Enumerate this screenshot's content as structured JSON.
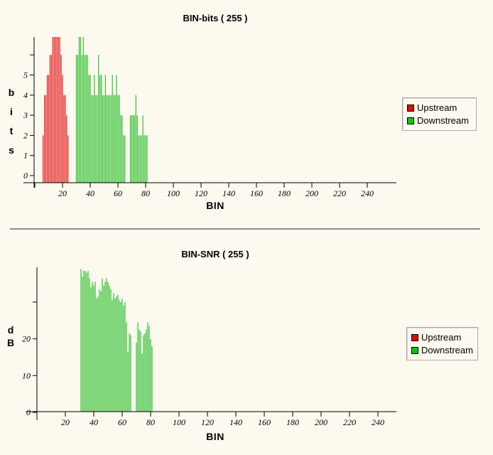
{
  "background_color": "#fdf9ef",
  "chart_data": [
    {
      "type": "bar",
      "name": "bits",
      "title": "BIN-bits ( 255 )",
      "xlabel": "BIN",
      "ylabel": "bits",
      "ylabel_chars": [
        "b",
        "i",
        "t",
        "s"
      ],
      "total_bins": 255,
      "xlim": [
        0,
        255
      ],
      "ylim": [
        0,
        6.6
      ],
      "grid": false,
      "x_ticks": [
        20,
        40,
        60,
        80,
        100,
        120,
        140,
        160,
        180,
        200,
        220,
        240
      ],
      "y_ticks": [
        {
          "value": 0,
          "label": "0"
        },
        {
          "value": 1,
          "label": "1"
        },
        {
          "value": 2,
          "label": "2"
        },
        {
          "value": 3,
          "label": "3"
        },
        {
          "value": 4,
          "label": "4"
        },
        {
          "value": 5,
          "label": "5"
        },
        {
          "value": 6,
          "label": ""
        }
      ],
      "series": [
        {
          "name": "Upstream",
          "color": "#e11b1b",
          "segments": [
            {
              "start_bin": 6,
              "values": [
                2,
                4,
                4,
                5,
                5,
                6,
                6,
                7,
                7,
                7,
                7,
                7,
                7,
                6,
                5,
                4,
                4,
                3,
                2
              ]
            }
          ]
        },
        {
          "name": "Downstream",
          "color": "#2fbf2f",
          "segments": [
            {
              "start_bin": 30,
              "values": [
                6,
                6,
                7,
                7,
                6,
                7,
                6,
                6,
                6,
                5,
                5,
                4,
                4,
                5,
                4,
                4,
                6,
                5,
                5,
                4,
                4,
                5,
                4,
                4,
                4,
                4,
                5,
                4,
                4,
                5,
                4,
                4,
                3,
                3,
                2,
                2
              ]
            },
            {
              "start_bin": 69,
              "values": [
                3,
                3,
                3,
                3,
                4,
                3,
                2,
                2,
                2,
                3,
                2,
                2,
                2
              ]
            }
          ]
        }
      ],
      "legend": {
        "position": "right",
        "items": [
          {
            "label": "Upstream",
            "color": "#ee0000"
          },
          {
            "label": "Downstream",
            "color": "#00cc00"
          }
        ]
      }
    },
    {
      "type": "bar",
      "name": "snr",
      "title": "BIN-SNR ( 255 )",
      "xlabel": "BIN",
      "ylabel": "dB",
      "ylabel_chars": [
        "d",
        "B"
      ],
      "total_bins": 255,
      "xlim": [
        0,
        255
      ],
      "ylim": [
        0,
        39
      ],
      "grid": false,
      "x_ticks": [
        20,
        40,
        60,
        80,
        100,
        120,
        140,
        160,
        180,
        200,
        220,
        240
      ],
      "y_ticks": [
        {
          "value": 0,
          "label": "0"
        },
        {
          "value": 10,
          "label": "10"
        },
        {
          "value": 20,
          "label": "20"
        },
        {
          "value": 30,
          "label": ""
        }
      ],
      "series": [
        {
          "name": "Upstream",
          "color": "#e11b1b",
          "segments": []
        },
        {
          "name": "Downstream",
          "color": "#2fbf2f",
          "segments": [
            {
              "start_bin": 31,
              "values": [
                39,
                37,
                38.5,
                38.5,
                38,
                38.5,
                36.5,
                34,
                35.5,
                34.5,
                35.5,
                31,
                31.5,
                33.5,
                33,
                36.5,
                34.5,
                35.5,
                36.5,
                35.5,
                34.5,
                33.5,
                30.5,
                32.5,
                31,
                31.5,
                32,
                30.5,
                30,
                31,
                29,
                30,
                24.5,
                16.5,
                21.5,
                21
              ]
            },
            {
              "start_bin": 70,
              "values": [
                19,
                24.5,
                22.5,
                22,
                16,
                21,
                21.5,
                22.5,
                24.5,
                23.5,
                20,
                18
              ]
            }
          ]
        }
      ],
      "legend": {
        "position": "right",
        "items": [
          {
            "label": "Upstream",
            "color": "#ee0000"
          },
          {
            "label": "Downstream",
            "color": "#00cc00"
          }
        ]
      }
    }
  ]
}
